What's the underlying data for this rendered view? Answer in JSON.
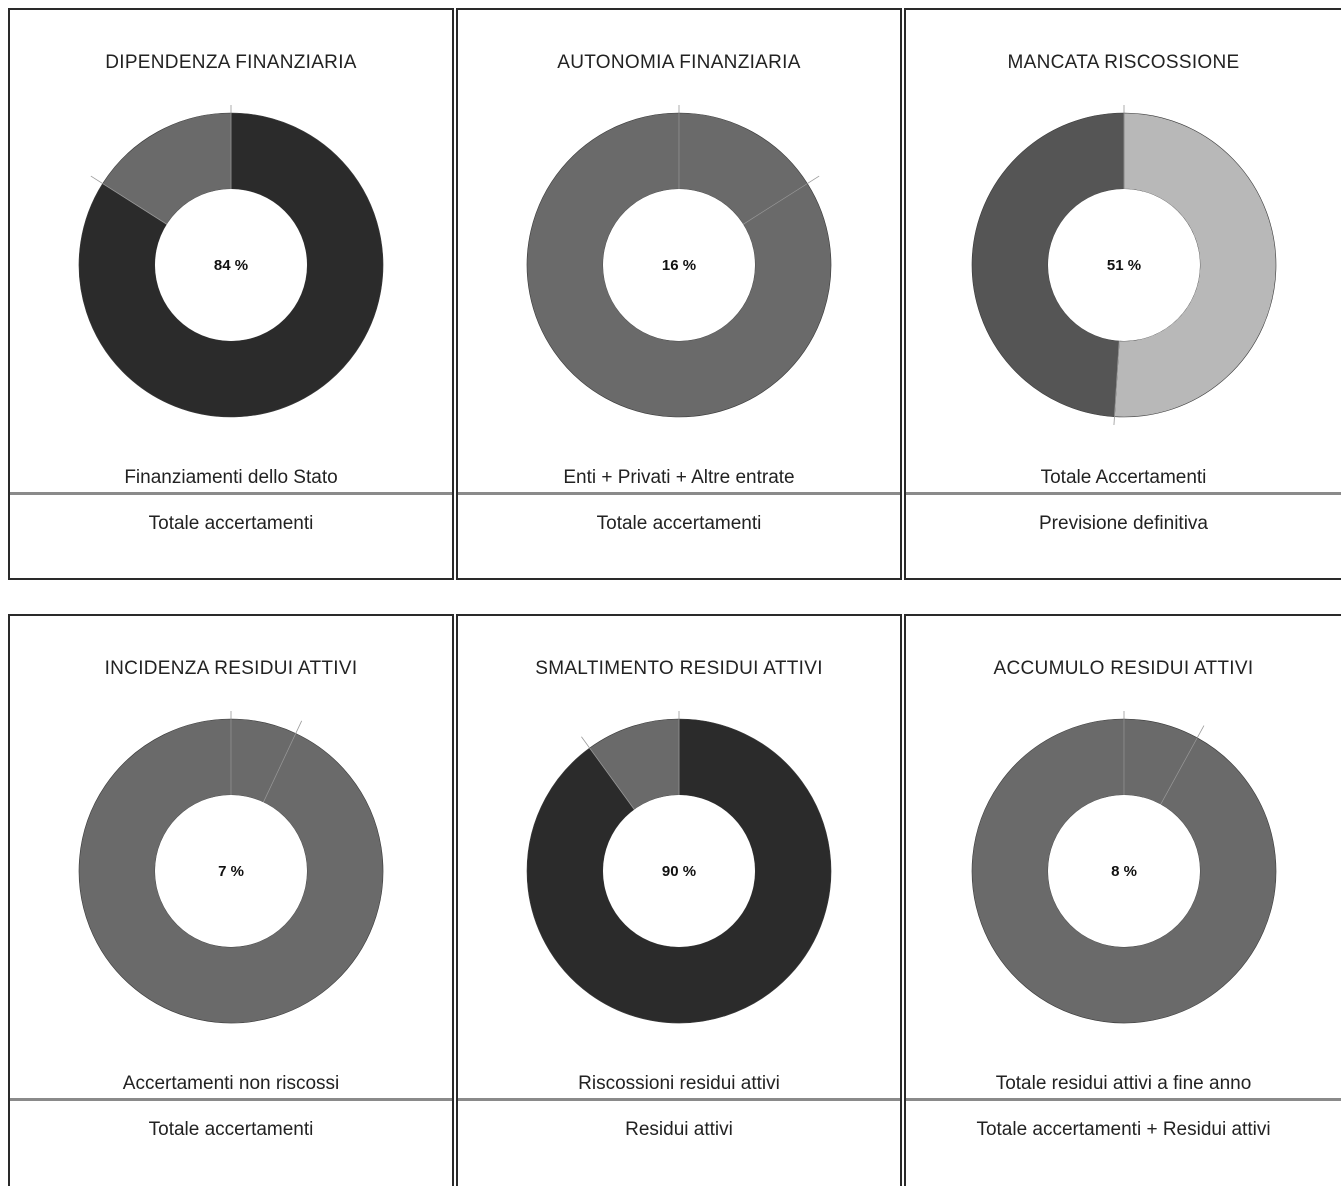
{
  "chart_data": [
    {
      "type": "pie",
      "title": "DIPENDENZA FINANZIARIA",
      "center_label": "84 %",
      "value_percent": 84,
      "numerator_label": "Finanziamenti dello Stato",
      "denominator_label": "Totale accertamenti",
      "colors": {
        "value": "#2b2b2b",
        "remainder": "#6a6a6a"
      }
    },
    {
      "type": "pie",
      "title": "AUTONOMIA FINANZIARIA",
      "center_label": "16 %",
      "value_percent": 16,
      "numerator_label": "Enti + Privati + Altre entrate",
      "denominator_label": "Totale accertamenti",
      "colors": {
        "value": "#6a6a6a",
        "remainder": "#6a6a6a"
      }
    },
    {
      "type": "pie",
      "title": "MANCATA RISCOSSIONE",
      "center_label": "51 %",
      "value_percent": 51,
      "numerator_label": "Totale Accertamenti",
      "denominator_label": "Previsione definitiva",
      "colors": {
        "value": "#b8b8b8",
        "remainder": "#555555"
      }
    },
    {
      "type": "pie",
      "title": "INCIDENZA RESIDUI ATTIVI",
      "center_label": "7 %",
      "value_percent": 7,
      "numerator_label": "Accertamenti non riscossi",
      "denominator_label": "Totale accertamenti",
      "colors": {
        "value": "#6a6a6a",
        "remainder": "#6a6a6a"
      }
    },
    {
      "type": "pie",
      "title": "SMALTIMENTO RESIDUI ATTIVI",
      "center_label": "90 %",
      "value_percent": 90,
      "numerator_label": "Riscossioni residui attivi",
      "denominator_label": "Residui attivi",
      "colors": {
        "value": "#2b2b2b",
        "remainder": "#6a6a6a"
      }
    },
    {
      "type": "pie",
      "title": "ACCUMULO RESIDUI ATTIVI",
      "center_label": "8 %",
      "value_percent": 8,
      "numerator_label": "Totale residui attivi a fine anno",
      "denominator_label": "Totale accertamenti + Residui attivi",
      "colors": {
        "value": "#6a6a6a",
        "remainder": "#6a6a6a"
      }
    }
  ]
}
